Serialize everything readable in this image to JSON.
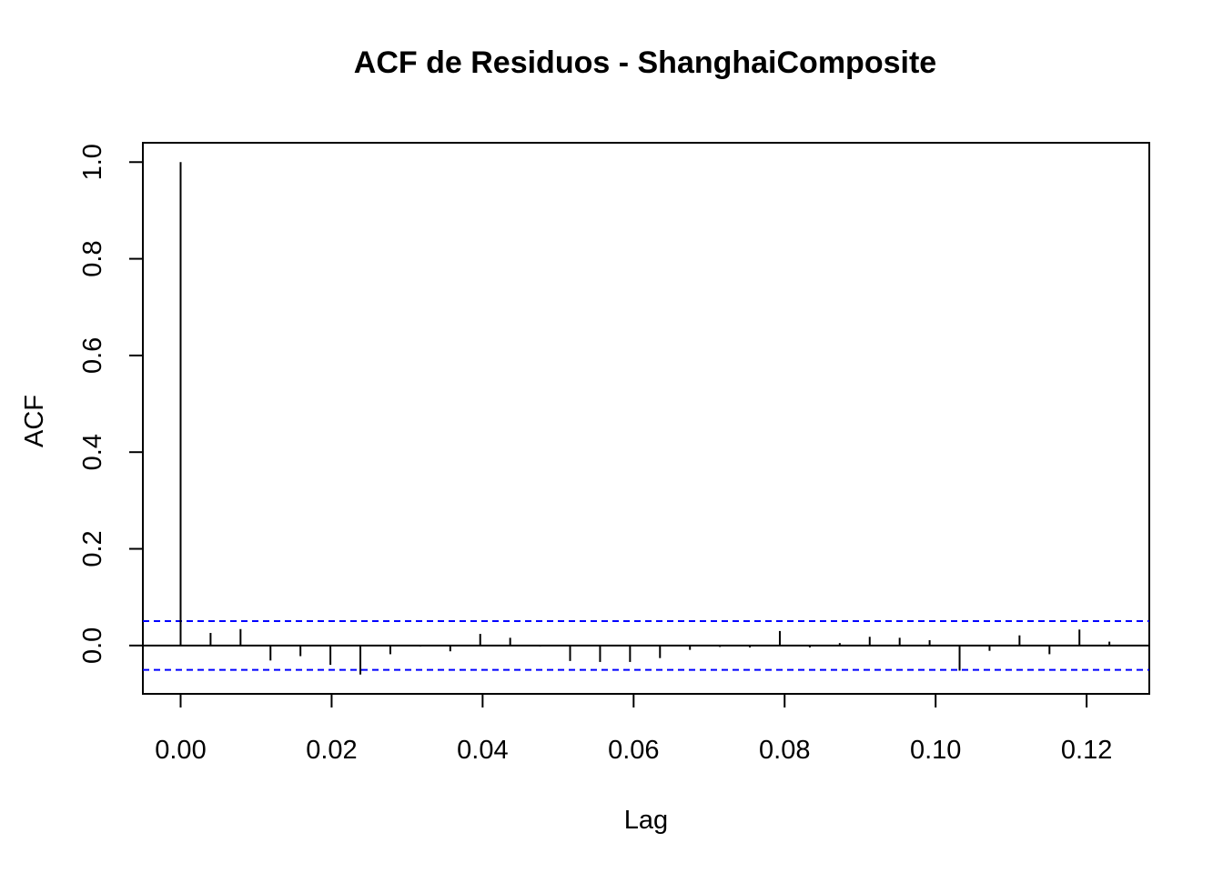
{
  "chart_data": {
    "type": "bar",
    "title": "ACF de Residuos - ShanghaiComposite",
    "xlabel": "Lag",
    "ylabel": "ACF",
    "xlim": [
      -0.005,
      0.1283
    ],
    "ylim": [
      -0.1,
      1.04
    ],
    "x_ticks": [
      "0.00",
      "0.02",
      "0.04",
      "0.06",
      "0.08",
      "0.10",
      "0.12"
    ],
    "y_ticks": [
      "0.0",
      "0.2",
      "0.4",
      "0.6",
      "0.8",
      "1.0"
    ],
    "confidence_bound": 0.0505,
    "lag_step": 0.003968,
    "x": [
      0.0,
      0.003968,
      0.007937,
      0.011905,
      0.015873,
      0.019841,
      0.02381,
      0.027778,
      0.031746,
      0.035714,
      0.039683,
      0.043651,
      0.047619,
      0.051587,
      0.055556,
      0.059524,
      0.063492,
      0.06746,
      0.071429,
      0.075397,
      0.079365,
      0.083333,
      0.087302,
      0.09127,
      0.095238,
      0.099206,
      0.103175,
      0.107143,
      0.111111,
      0.115079,
      0.119048,
      0.123016
    ],
    "values": [
      1.0,
      0.026,
      0.034,
      -0.031,
      -0.022,
      -0.04,
      -0.06,
      -0.018,
      -0.002,
      -0.012,
      0.024,
      0.016,
      -0.002,
      -0.032,
      -0.034,
      -0.034,
      -0.026,
      -0.009,
      -0.003,
      -0.004,
      0.03,
      -0.004,
      0.005,
      0.018,
      0.016,
      0.011,
      -0.052,
      -0.011,
      0.021,
      -0.018,
      0.033,
      0.008
    ],
    "colors": {
      "bars": "#000000",
      "bounds": "#0000ff",
      "frame": "#000000"
    }
  }
}
